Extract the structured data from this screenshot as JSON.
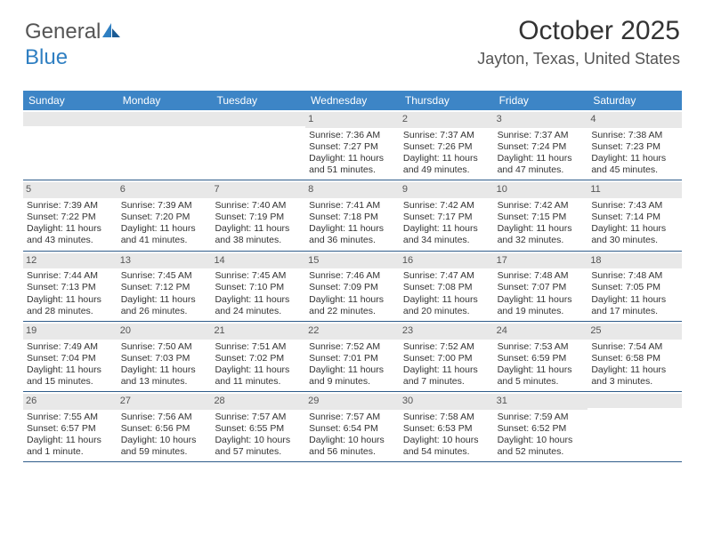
{
  "logo": {
    "part1": "General",
    "part2": "Blue"
  },
  "title": "October 2025",
  "location": "Jayton, Texas, United States",
  "colors": {
    "header_bg": "#3d85c6",
    "header_text": "#ffffff",
    "daynum_bg": "#e8e8e8",
    "week_divider": "#2f5c8a",
    "text": "#333333",
    "logo_gray": "#555555",
    "logo_blue": "#2f7fc2"
  },
  "weekdays": [
    "Sunday",
    "Monday",
    "Tuesday",
    "Wednesday",
    "Thursday",
    "Friday",
    "Saturday"
  ],
  "weeks": [
    [
      {
        "n": "",
        "sr": "",
        "ss": "",
        "dl1": "",
        "dl2": ""
      },
      {
        "n": "",
        "sr": "",
        "ss": "",
        "dl1": "",
        "dl2": ""
      },
      {
        "n": "",
        "sr": "",
        "ss": "",
        "dl1": "",
        "dl2": ""
      },
      {
        "n": "1",
        "sr": "Sunrise: 7:36 AM",
        "ss": "Sunset: 7:27 PM",
        "dl1": "Daylight: 11 hours",
        "dl2": "and 51 minutes."
      },
      {
        "n": "2",
        "sr": "Sunrise: 7:37 AM",
        "ss": "Sunset: 7:26 PM",
        "dl1": "Daylight: 11 hours",
        "dl2": "and 49 minutes."
      },
      {
        "n": "3",
        "sr": "Sunrise: 7:37 AM",
        "ss": "Sunset: 7:24 PM",
        "dl1": "Daylight: 11 hours",
        "dl2": "and 47 minutes."
      },
      {
        "n": "4",
        "sr": "Sunrise: 7:38 AM",
        "ss": "Sunset: 7:23 PM",
        "dl1": "Daylight: 11 hours",
        "dl2": "and 45 minutes."
      }
    ],
    [
      {
        "n": "5",
        "sr": "Sunrise: 7:39 AM",
        "ss": "Sunset: 7:22 PM",
        "dl1": "Daylight: 11 hours",
        "dl2": "and 43 minutes."
      },
      {
        "n": "6",
        "sr": "Sunrise: 7:39 AM",
        "ss": "Sunset: 7:20 PM",
        "dl1": "Daylight: 11 hours",
        "dl2": "and 41 minutes."
      },
      {
        "n": "7",
        "sr": "Sunrise: 7:40 AM",
        "ss": "Sunset: 7:19 PM",
        "dl1": "Daylight: 11 hours",
        "dl2": "and 38 minutes."
      },
      {
        "n": "8",
        "sr": "Sunrise: 7:41 AM",
        "ss": "Sunset: 7:18 PM",
        "dl1": "Daylight: 11 hours",
        "dl2": "and 36 minutes."
      },
      {
        "n": "9",
        "sr": "Sunrise: 7:42 AM",
        "ss": "Sunset: 7:17 PM",
        "dl1": "Daylight: 11 hours",
        "dl2": "and 34 minutes."
      },
      {
        "n": "10",
        "sr": "Sunrise: 7:42 AM",
        "ss": "Sunset: 7:15 PM",
        "dl1": "Daylight: 11 hours",
        "dl2": "and 32 minutes."
      },
      {
        "n": "11",
        "sr": "Sunrise: 7:43 AM",
        "ss": "Sunset: 7:14 PM",
        "dl1": "Daylight: 11 hours",
        "dl2": "and 30 minutes."
      }
    ],
    [
      {
        "n": "12",
        "sr": "Sunrise: 7:44 AM",
        "ss": "Sunset: 7:13 PM",
        "dl1": "Daylight: 11 hours",
        "dl2": "and 28 minutes."
      },
      {
        "n": "13",
        "sr": "Sunrise: 7:45 AM",
        "ss": "Sunset: 7:12 PM",
        "dl1": "Daylight: 11 hours",
        "dl2": "and 26 minutes."
      },
      {
        "n": "14",
        "sr": "Sunrise: 7:45 AM",
        "ss": "Sunset: 7:10 PM",
        "dl1": "Daylight: 11 hours",
        "dl2": "and 24 minutes."
      },
      {
        "n": "15",
        "sr": "Sunrise: 7:46 AM",
        "ss": "Sunset: 7:09 PM",
        "dl1": "Daylight: 11 hours",
        "dl2": "and 22 minutes."
      },
      {
        "n": "16",
        "sr": "Sunrise: 7:47 AM",
        "ss": "Sunset: 7:08 PM",
        "dl1": "Daylight: 11 hours",
        "dl2": "and 20 minutes."
      },
      {
        "n": "17",
        "sr": "Sunrise: 7:48 AM",
        "ss": "Sunset: 7:07 PM",
        "dl1": "Daylight: 11 hours",
        "dl2": "and 19 minutes."
      },
      {
        "n": "18",
        "sr": "Sunrise: 7:48 AM",
        "ss": "Sunset: 7:05 PM",
        "dl1": "Daylight: 11 hours",
        "dl2": "and 17 minutes."
      }
    ],
    [
      {
        "n": "19",
        "sr": "Sunrise: 7:49 AM",
        "ss": "Sunset: 7:04 PM",
        "dl1": "Daylight: 11 hours",
        "dl2": "and 15 minutes."
      },
      {
        "n": "20",
        "sr": "Sunrise: 7:50 AM",
        "ss": "Sunset: 7:03 PM",
        "dl1": "Daylight: 11 hours",
        "dl2": "and 13 minutes."
      },
      {
        "n": "21",
        "sr": "Sunrise: 7:51 AM",
        "ss": "Sunset: 7:02 PM",
        "dl1": "Daylight: 11 hours",
        "dl2": "and 11 minutes."
      },
      {
        "n": "22",
        "sr": "Sunrise: 7:52 AM",
        "ss": "Sunset: 7:01 PM",
        "dl1": "Daylight: 11 hours",
        "dl2": "and 9 minutes."
      },
      {
        "n": "23",
        "sr": "Sunrise: 7:52 AM",
        "ss": "Sunset: 7:00 PM",
        "dl1": "Daylight: 11 hours",
        "dl2": "and 7 minutes."
      },
      {
        "n": "24",
        "sr": "Sunrise: 7:53 AM",
        "ss": "Sunset: 6:59 PM",
        "dl1": "Daylight: 11 hours",
        "dl2": "and 5 minutes."
      },
      {
        "n": "25",
        "sr": "Sunrise: 7:54 AM",
        "ss": "Sunset: 6:58 PM",
        "dl1": "Daylight: 11 hours",
        "dl2": "and 3 minutes."
      }
    ],
    [
      {
        "n": "26",
        "sr": "Sunrise: 7:55 AM",
        "ss": "Sunset: 6:57 PM",
        "dl1": "Daylight: 11 hours",
        "dl2": "and 1 minute."
      },
      {
        "n": "27",
        "sr": "Sunrise: 7:56 AM",
        "ss": "Sunset: 6:56 PM",
        "dl1": "Daylight: 10 hours",
        "dl2": "and 59 minutes."
      },
      {
        "n": "28",
        "sr": "Sunrise: 7:57 AM",
        "ss": "Sunset: 6:55 PM",
        "dl1": "Daylight: 10 hours",
        "dl2": "and 57 minutes."
      },
      {
        "n": "29",
        "sr": "Sunrise: 7:57 AM",
        "ss": "Sunset: 6:54 PM",
        "dl1": "Daylight: 10 hours",
        "dl2": "and 56 minutes."
      },
      {
        "n": "30",
        "sr": "Sunrise: 7:58 AM",
        "ss": "Sunset: 6:53 PM",
        "dl1": "Daylight: 10 hours",
        "dl2": "and 54 minutes."
      },
      {
        "n": "31",
        "sr": "Sunrise: 7:59 AM",
        "ss": "Sunset: 6:52 PM",
        "dl1": "Daylight: 10 hours",
        "dl2": "and 52 minutes."
      },
      {
        "n": "",
        "sr": "",
        "ss": "",
        "dl1": "",
        "dl2": ""
      }
    ]
  ]
}
